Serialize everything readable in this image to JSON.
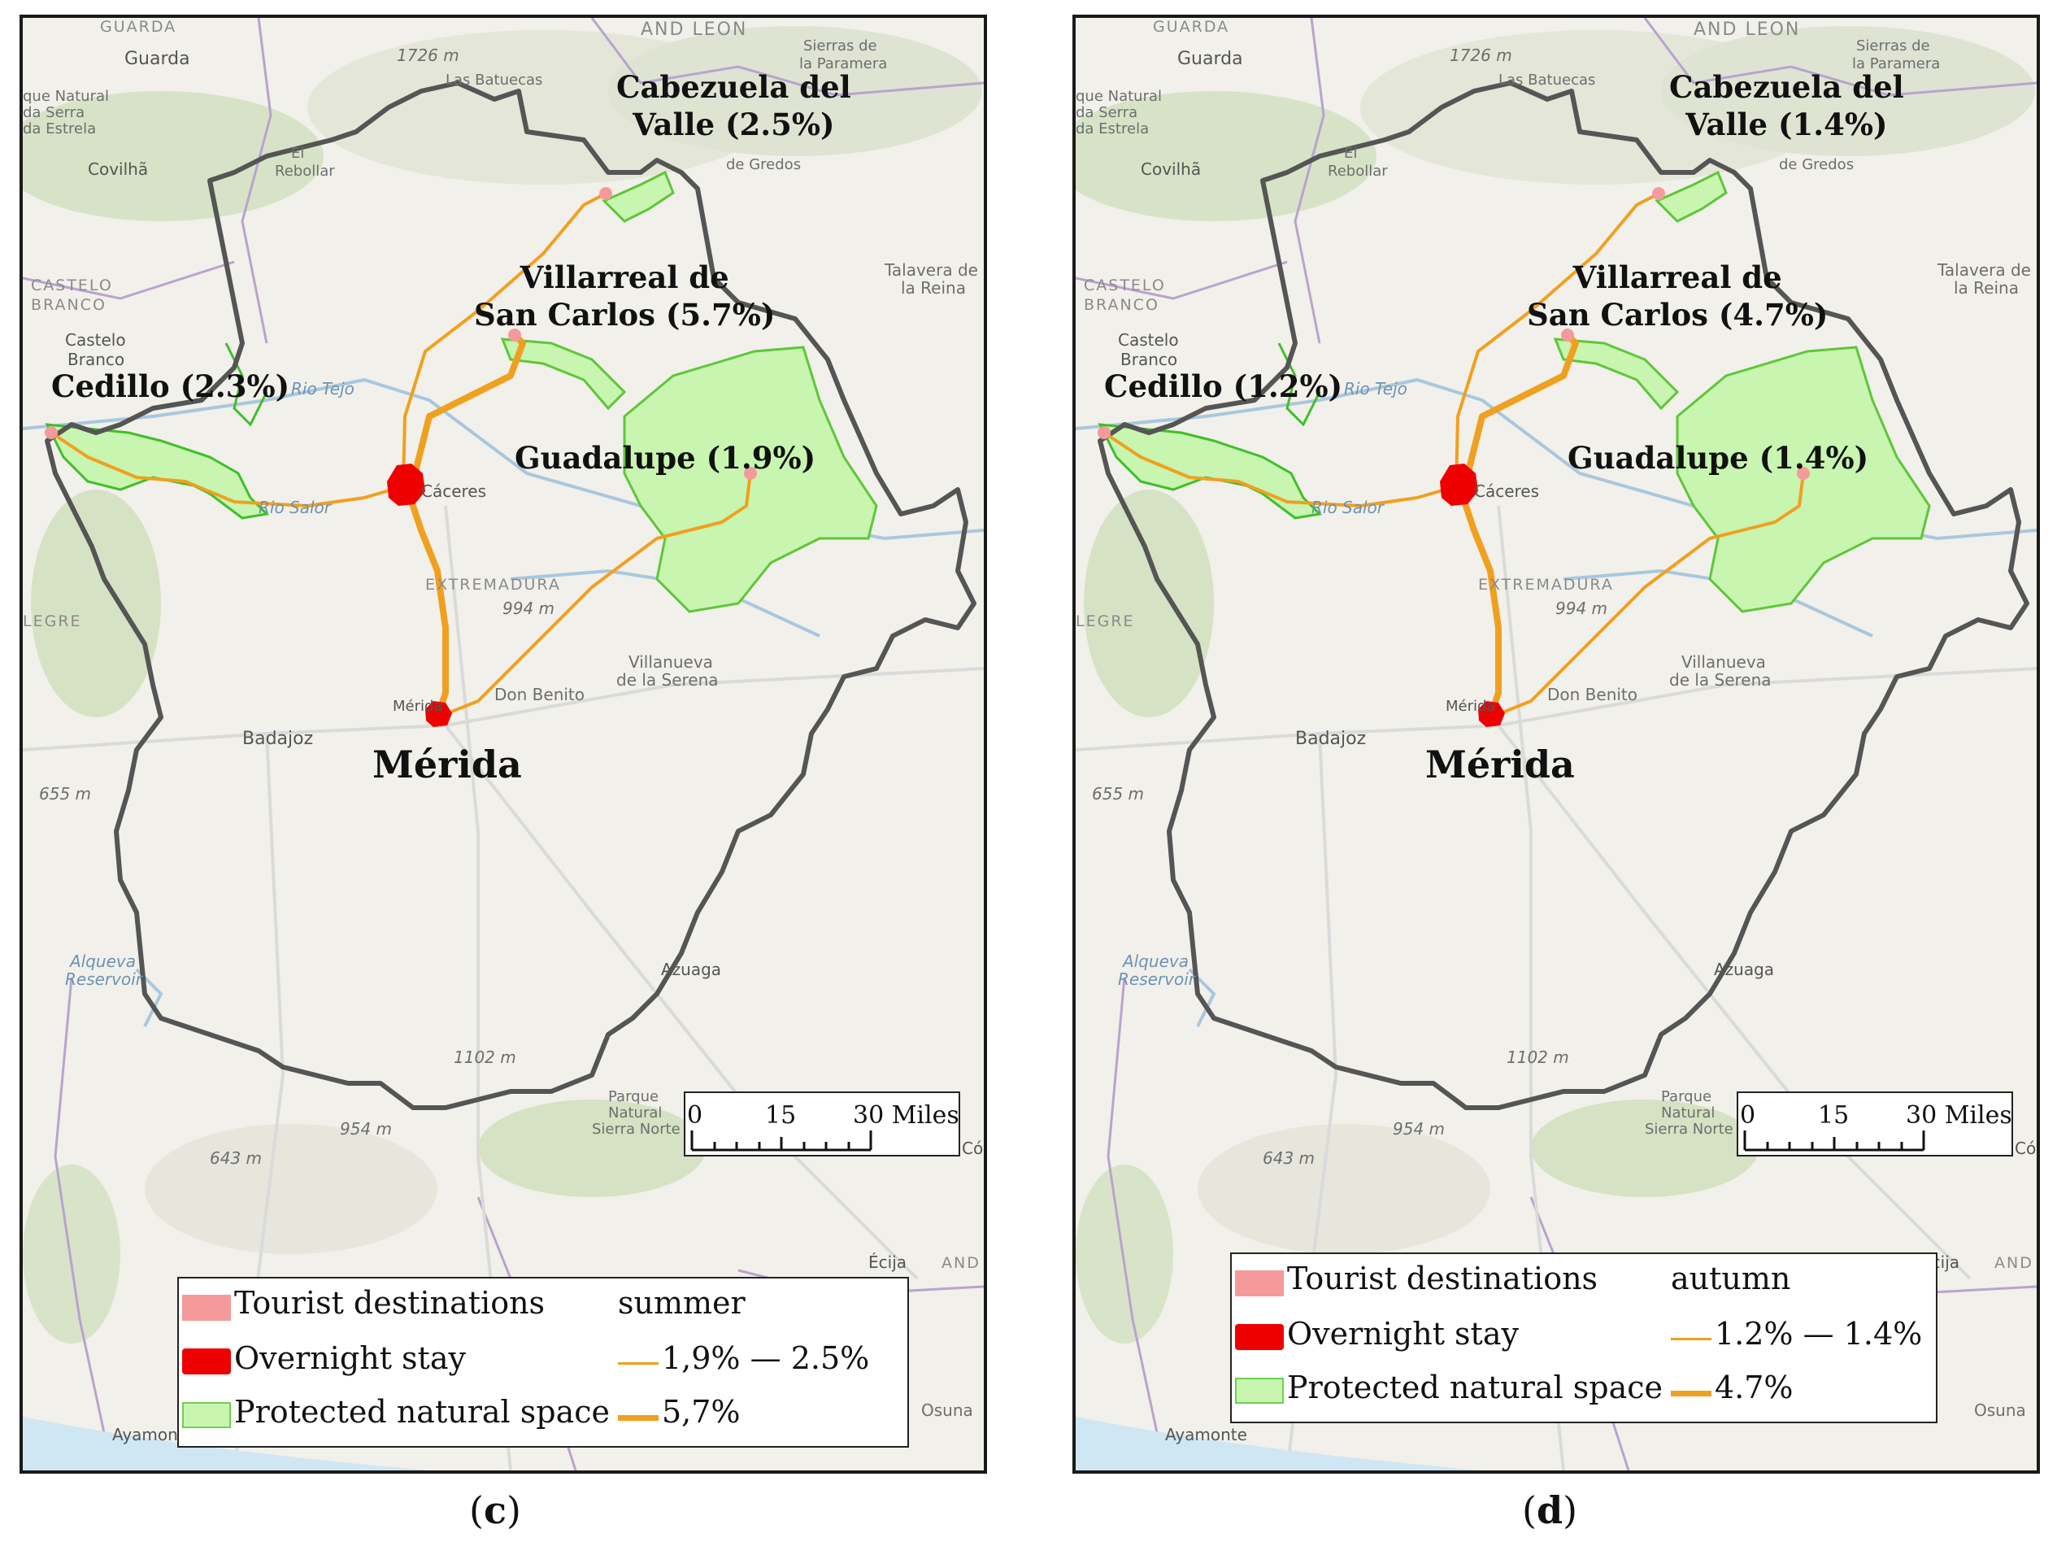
{
  "panels": [
    {
      "id": "c",
      "caption_letter": "c",
      "season": "summer",
      "destinations": {
        "cabezuela": "Cabezuela del\nValle (2.5%)",
        "villarreal": "Villarreal de\nSan Carlos (5.7%)",
        "cedillo": "Cedillo (2.3%)",
        "guadalupe": "Guadalupe (1.9%)",
        "merida": "Mérida"
      },
      "legend": {
        "tourist": "Tourist destinations",
        "overnight": "Overnight stay",
        "protected": "Protected natural space",
        "season": "summer",
        "thin_range": "1,9% — 2.5%",
        "thick_value": "5,7%"
      }
    },
    {
      "id": "d",
      "caption_letter": "d",
      "season": "autumn",
      "destinations": {
        "cabezuela": "Cabezuela del\nValle (1.4%)",
        "villarreal": "Villarreal de\nSan Carlos (4.7%)",
        "cedillo": "Cedillo (1.2%)",
        "guadalupe": "Guadalupe (1.4%)",
        "merida": "Mérida"
      },
      "legend": {
        "tourist": "Tourist destinations",
        "overnight": "Overnight stay",
        "protected": "Protected natural space",
        "season": "autumn",
        "thin_range": "1.2% — 1.4%",
        "thick_value": "4.7%"
      }
    }
  ],
  "basemap_labels": {
    "guarda_caps": "GUARDA",
    "and_leon": "AND LEON",
    "guarda": "Guarda",
    "elev_1726": "1726 m",
    "las_batuecas": "Las Batuecas",
    "sierras_de": "Sierras de",
    "la_paramera": "la Paramera",
    "parque_natural": "que Natural",
    "da_serra": "da Serra",
    "da_estrela": "da Estrela",
    "el": "El",
    "rebollar": "Rebollar",
    "covilha": "Covilhã",
    "sierra_gredos": "de Gredos",
    "talavera_de": "Talavera de",
    "la_reina": "la Reina",
    "castelo_caps": "CASTELO",
    "branco_caps": "BRANCO",
    "castelo": "Castelo",
    "branco": "Branco",
    "rio_tejo": "Rio Tejo",
    "rio_salor": "Rio Salor",
    "caceres": "Cáceres",
    "extremadura": "EXTREMADURA",
    "elev_994": "994 m",
    "legre": "LEGRE",
    "villanueva": "Villanueva",
    "de_la_serena": "de la Serena",
    "don_benito": "Don Benito",
    "merida_small": "Mérida",
    "badajoz": "Badajoz",
    "elev_655": "655 m",
    "alqueva": "Alqueva",
    "reservoir": "Reservoir",
    "azuaga": "Azuaga",
    "elev_1102": "1102 m",
    "parque": "Parque",
    "natural": "Natural",
    "sierra_norte": "Sierra Norte",
    "elev_954": "954 m",
    "elev_643": "643 m",
    "ecija": "Écija",
    "and": "AND",
    "osuna": "Osuna",
    "ayamonte": "Ayamonte",
    "co": "Có"
  },
  "scalebar": {
    "ticks": [
      "0",
      "15",
      "30 Miles"
    ]
  },
  "colors": {
    "route": "#f0a020",
    "tourist": "#f59a9a",
    "overnight": "#ee0000",
    "protected_fill": "#c8f5b0",
    "protected_stroke": "#5fc63a",
    "border": "#555555"
  }
}
